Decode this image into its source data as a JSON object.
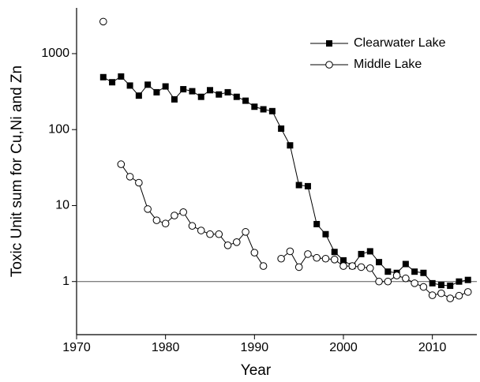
{
  "chart_data": {
    "type": "line",
    "xlabel": "Year",
    "ylabel": "Toxic Unit sum for Cu,Ni and Zn",
    "x": [
      1973,
      1974,
      1975,
      1976,
      1977,
      1978,
      1979,
      1980,
      1981,
      1982,
      1983,
      1984,
      1985,
      1986,
      1987,
      1988,
      1989,
      1990,
      1991,
      1992,
      1993,
      1994,
      1995,
      1996,
      1997,
      1998,
      1999,
      2000,
      2001,
      2002,
      2003,
      2004,
      2005,
      2006,
      2007,
      2008,
      2009,
      2010,
      2011,
      2012,
      2013,
      2014
    ],
    "series": [
      {
        "name": "Clearwater Lake",
        "color": "#000000",
        "marker": "square",
        "values": [
          490,
          420,
          500,
          380,
          280,
          390,
          310,
          370,
          250,
          340,
          320,
          270,
          330,
          290,
          310,
          270,
          240,
          200,
          185,
          175,
          103,
          62,
          18.6,
          18,
          5.7,
          4.2,
          2.45,
          1.9,
          1.6,
          2.3,
          2.5,
          1.8,
          1.35,
          1.3,
          1.7,
          1.35,
          1.3,
          0.95,
          0.9,
          0.88,
          1.0,
          1.05
        ]
      },
      {
        "name": "Middle Lake",
        "color": "#000000",
        "marker": "open-circle",
        "values": [
          2640,
          null,
          35,
          24,
          20,
          9,
          6.4,
          5.8,
          7.4,
          8.2,
          5.4,
          4.7,
          4.2,
          4.2,
          3.0,
          3.3,
          4.5,
          2.4,
          1.6,
          null,
          2.0,
          2.5,
          1.55,
          2.3,
          2.05,
          2.0,
          1.95,
          1.6,
          1.6,
          1.55,
          1.5,
          1.0,
          1.0,
          1.2,
          1.1,
          0.95,
          0.85,
          0.66,
          0.7,
          0.6,
          0.65,
          0.73
        ]
      }
    ],
    "xlim": [
      1970,
      2015
    ],
    "xticks": [
      1970,
      1980,
      1990,
      2000,
      2010
    ],
    "ylim": [
      0.2,
      4000
    ],
    "yticks": [
      1,
      10,
      100,
      1000
    ],
    "log_y": true,
    "hline": 1,
    "legend": "upper right"
  }
}
